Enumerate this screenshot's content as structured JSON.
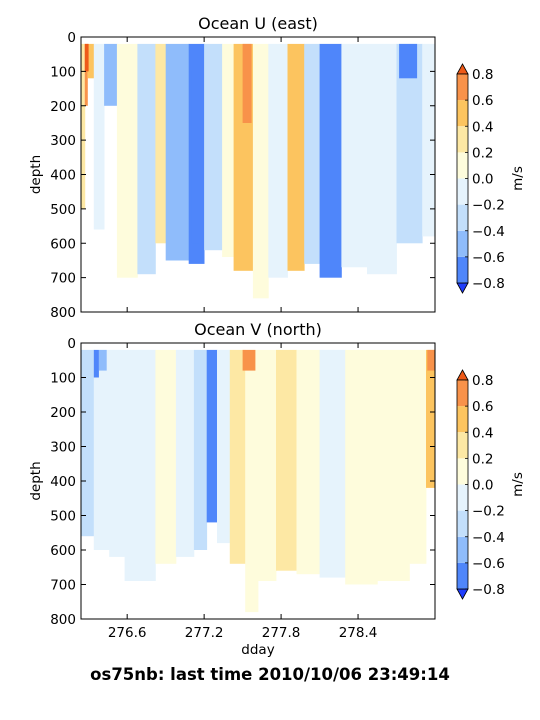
{
  "footer": "os75nb: last time 2010/10/06 23:49:14",
  "levels": [
    -0.8,
    -0.6,
    -0.4,
    -0.2,
    0.0,
    0.2,
    0.4,
    0.6,
    0.8
  ],
  "level_colors": [
    "#1f3dfb",
    "#4f86fa",
    "#8fbcfb",
    "#c3dffb",
    "#e6f3fc",
    "#fefcdc",
    "#fde8a4",
    "#fcc45f",
    "#f8924a",
    "#ee5a18"
  ],
  "chart_data": [
    {
      "type": "heatmap",
      "title": "Ocean U (east)",
      "ylabel": "depth",
      "yticks": [
        0,
        100,
        200,
        300,
        400,
        500,
        600,
        700,
        800
      ],
      "ylim": [
        800,
        0
      ],
      "xlim": [
        276.24,
        279.0
      ],
      "colorbar_ticks": [
        "0.8",
        "0.6",
        "0.4",
        "0.2",
        "0.0",
        "−0.2",
        "−0.4",
        "−0.6",
        "−0.8"
      ],
      "colorbar_label": "m/s",
      "columns": [
        {
          "x": [
            276.24,
            276.27
          ],
          "v": 0.3,
          "bottom": 500
        },
        {
          "x": [
            276.27,
            276.29
          ],
          "v": 0.7,
          "bottom": 200
        },
        {
          "x": [
            276.29,
            276.34
          ],
          "v": 0.5,
          "bottom": 120
        },
        {
          "x": [
            276.34,
            276.42
          ],
          "v": -0.2,
          "bottom": 560
        },
        {
          "x": [
            276.42,
            276.52
          ],
          "v": -0.5,
          "bottom": 200
        },
        {
          "x": [
            276.52,
            276.68
          ],
          "v": 0.1,
          "bottom": 700
        },
        {
          "x": [
            276.68,
            276.82
          ],
          "v": -0.25,
          "bottom": 690
        },
        {
          "x": [
            276.82,
            276.9
          ],
          "v": 0.3,
          "bottom": 600
        },
        {
          "x": [
            276.9,
            277.08
          ],
          "v": -0.5,
          "bottom": 650
        },
        {
          "x": [
            277.08,
            277.2
          ],
          "v": -0.7,
          "bottom": 660
        },
        {
          "x": [
            277.2,
            277.34
          ],
          "v": -0.35,
          "bottom": 620
        },
        {
          "x": [
            277.34,
            277.43
          ],
          "v": 0.1,
          "bottom": 640
        },
        {
          "x": [
            277.43,
            277.58
          ],
          "v": 0.55,
          "bottom": 680
        },
        {
          "x": [
            277.58,
            277.7
          ],
          "v": 0.05,
          "bottom": 760
        },
        {
          "x": [
            277.7,
            277.85
          ],
          "v": -0.1,
          "bottom": 700
        },
        {
          "x": [
            277.85,
            277.98
          ],
          "v": 0.45,
          "bottom": 680
        },
        {
          "x": [
            277.98,
            278.1
          ],
          "v": -0.3,
          "bottom": 660
        },
        {
          "x": [
            278.1,
            278.27
          ],
          "v": -0.65,
          "bottom": 700
        },
        {
          "x": [
            278.27,
            278.47
          ],
          "v": -0.2,
          "bottom": 670
        },
        {
          "x": [
            278.47,
            278.7
          ],
          "v": -0.1,
          "bottom": 690
        },
        {
          "x": [
            278.7,
            278.9
          ],
          "v": -0.35,
          "bottom": 600
        },
        {
          "x": [
            278.9,
            279.0
          ],
          "v": -0.15,
          "bottom": 580
        }
      ],
      "patches": [
        {
          "x": [
            278.72,
            278.86
          ],
          "y": [
            20,
            120
          ],
          "v": -0.75
        },
        {
          "x": [
            277.5,
            277.57
          ],
          "y": [
            20,
            250
          ],
          "v": 0.75
        },
        {
          "x": [
            277.1,
            277.16
          ],
          "y": [
            100,
            600
          ],
          "v": -0.75
        },
        {
          "x": [
            276.27,
            276.3
          ],
          "y": [
            20,
            100
          ],
          "v": 0.8
        }
      ]
    },
    {
      "type": "heatmap",
      "title": "Ocean V (north)",
      "ylabel": "depth",
      "xlabel": "dday",
      "xticks": [
        276.6,
        277.2,
        277.8,
        278.4
      ],
      "yticks": [
        0,
        100,
        200,
        300,
        400,
        500,
        600,
        700,
        800
      ],
      "ylim": [
        800,
        0
      ],
      "xlim": [
        276.24,
        279.0
      ],
      "colorbar_ticks": [
        "0.8",
        "0.6",
        "0.4",
        "0.2",
        "0.0",
        "−0.2",
        "−0.4",
        "−0.6",
        "−0.8"
      ],
      "colorbar_label": "m/s",
      "columns": [
        {
          "x": [
            276.24,
            276.34
          ],
          "v": -0.25,
          "bottom": 560
        },
        {
          "x": [
            276.34,
            276.46
          ],
          "v": -0.1,
          "bottom": 600
        },
        {
          "x": [
            276.46,
            276.58
          ],
          "v": -0.2,
          "bottom": 620
        },
        {
          "x": [
            276.58,
            276.82
          ],
          "v": -0.1,
          "bottom": 690
        },
        {
          "x": [
            276.82,
            276.98
          ],
          "v": 0.1,
          "bottom": 640
        },
        {
          "x": [
            276.98,
            277.12
          ],
          "v": -0.2,
          "bottom": 620
        },
        {
          "x": [
            277.12,
            277.22
          ],
          "v": -0.4,
          "bottom": 600
        },
        {
          "x": [
            277.22,
            277.3
          ],
          "v": -0.7,
          "bottom": 520
        },
        {
          "x": [
            277.3,
            277.4
          ],
          "v": -0.1,
          "bottom": 580
        },
        {
          "x": [
            277.4,
            277.52
          ],
          "v": 0.3,
          "bottom": 640
        },
        {
          "x": [
            277.52,
            277.62
          ],
          "v": 0.15,
          "bottom": 780
        },
        {
          "x": [
            277.62,
            277.76
          ],
          "v": 0.1,
          "bottom": 690
        },
        {
          "x": [
            277.76,
            277.92
          ],
          "v": 0.2,
          "bottom": 660
        },
        {
          "x": [
            277.92,
            278.1
          ],
          "v": 0.05,
          "bottom": 670
        },
        {
          "x": [
            278.1,
            278.3
          ],
          "v": -0.15,
          "bottom": 680
        },
        {
          "x": [
            278.3,
            278.55
          ],
          "v": 0.05,
          "bottom": 700
        },
        {
          "x": [
            278.55,
            278.8
          ],
          "v": 0.1,
          "bottom": 690
        },
        {
          "x": [
            278.8,
            278.93
          ],
          "v": 0.15,
          "bottom": 640
        },
        {
          "x": [
            278.93,
            279.0
          ],
          "v": 0.55,
          "bottom": 420
        }
      ],
      "patches": [
        {
          "x": [
            276.34,
            276.38
          ],
          "y": [
            20,
            100
          ],
          "v": -0.75
        },
        {
          "x": [
            276.38,
            276.44
          ],
          "y": [
            20,
            80
          ],
          "v": -0.45
        },
        {
          "x": [
            277.5,
            277.6
          ],
          "y": [
            20,
            80
          ],
          "v": 0.6
        },
        {
          "x": [
            278.94,
            279.0
          ],
          "y": [
            20,
            80
          ],
          "v": 0.65
        }
      ]
    }
  ]
}
